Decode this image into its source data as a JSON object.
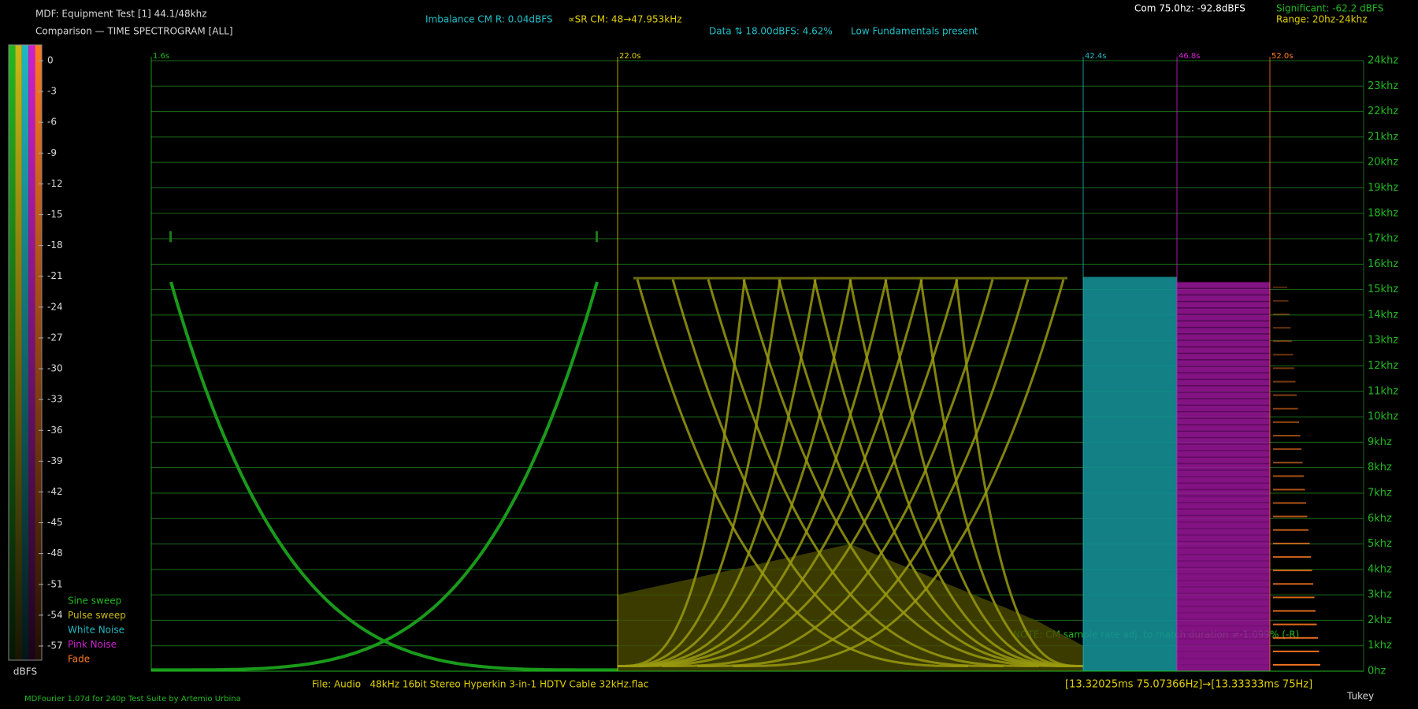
{
  "header": {
    "title": "MDF: Equipment Test [1] 44.1/48khz",
    "subtitle": "Comparison — TIME SPECTROGRAM [ALL]",
    "imbalance": "Imbalance CM R: 0.04dBFS",
    "sr_cm": "∝SR CM: 48→47.953kHz",
    "data_info": "Data ⇅ 18.00dBFS: 4.62%",
    "fundamentals": "Low Fundamentals present",
    "com": "Com 75.0hz: -92.8dBFS",
    "significant": "Significant: -62.2 dBFS",
    "range": "Range: 20hz-24khz"
  },
  "scale": {
    "ticks": [
      "0",
      "-3",
      "-6",
      "-9",
      "-12",
      "-15",
      "-18",
      "-21",
      "-24",
      "-27",
      "-30",
      "-33",
      "-36",
      "-39",
      "-42",
      "-45",
      "-48",
      "-51",
      "-54",
      "-57"
    ],
    "unit": "dBFS"
  },
  "legend": [
    {
      "name": "Sine sweep",
      "color": "#22b822"
    },
    {
      "name": "Pulse sweep",
      "color": "#c8b818"
    },
    {
      "name": "White Noise",
      "color": "#1fb8c0"
    },
    {
      "name": "Pink Noise",
      "color": "#d020d0"
    },
    {
      "name": "Fade",
      "color": "#ff7a20"
    }
  ],
  "segments": [
    "1.6s",
    "22.0s",
    "42.4s",
    "46.8s",
    "52.0s"
  ],
  "frequency_axis": [
    "24khz",
    "23khz",
    "22khz",
    "21khz",
    "20khz",
    "19khz",
    "18khz",
    "17khz",
    "16khz",
    "15khz",
    "14khz",
    "13khz",
    "12khz",
    "11khz",
    "10khz",
    "9khz",
    "8khz",
    "7khz",
    "6khz",
    "5khz",
    "4khz",
    "3khz",
    "2khz",
    "1khz",
    "0hz"
  ],
  "note": "NOTE: CM sample rate adj. to match duration ≠-1.099% (-R)",
  "footer": {
    "file": "File: Audio   48kHz 16bit Stereo Hyperkin 3-in-1 HDTV Cable 32kHz.flac",
    "timing": "[13.32025ms 75.07366Hz]→[13.33333ms 75Hz]",
    "credit": "MDFourier 1.07d for 240p Test Suite by Artemio Urbina",
    "window": "Tukey"
  }
}
